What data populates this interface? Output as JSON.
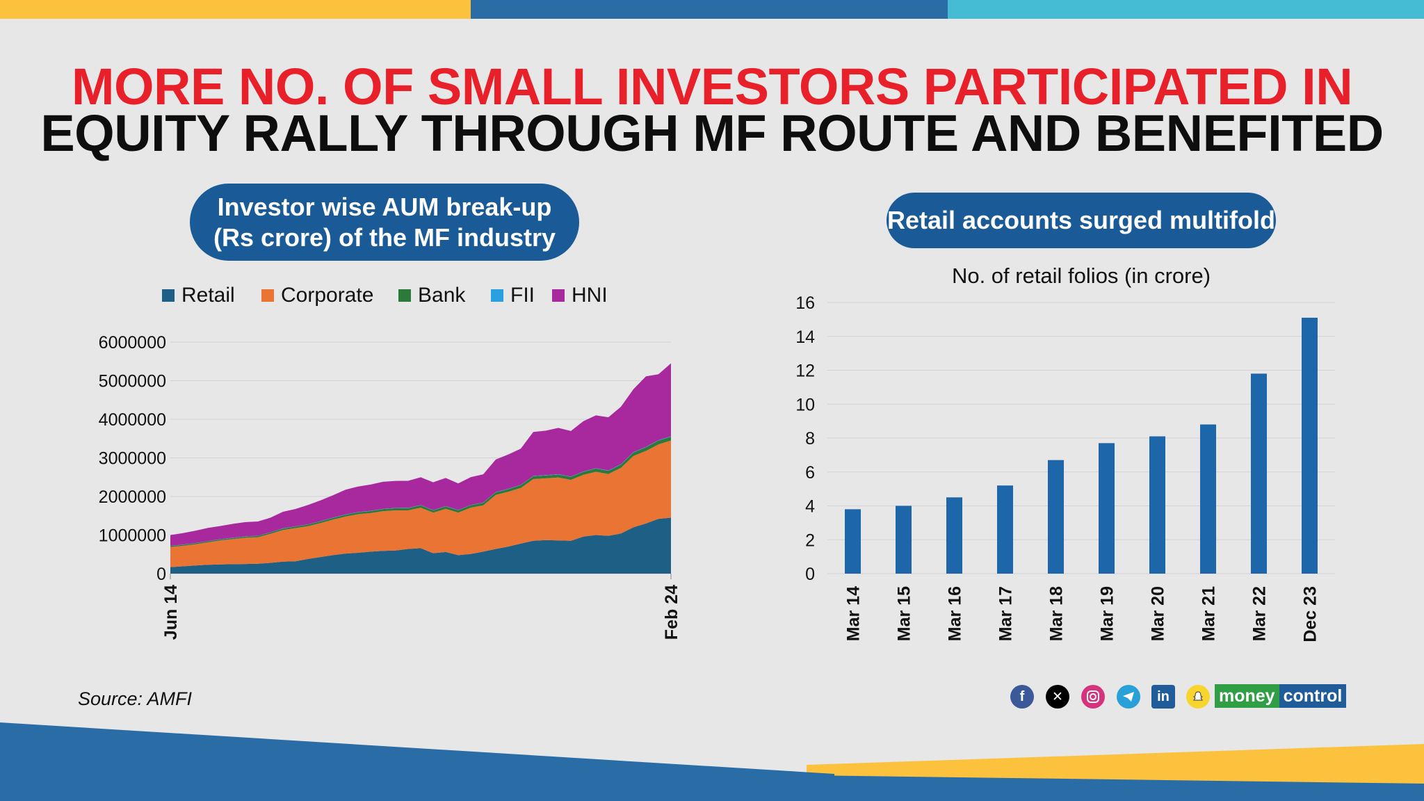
{
  "headline": {
    "line1": "MORE NO. OF SMALL INVESTORS PARTICIPATED IN",
    "line2": "EQUITY RALLY THROUGH MF ROUTE AND BENEFITED"
  },
  "left_panel": {
    "pill_line1": "Investor wise AUM break-up",
    "pill_line2": "(Rs crore) of the MF industry"
  },
  "right_panel": {
    "pill": "Retail accounts surged multifold"
  },
  "source": "Source: AMFI",
  "brand": {
    "part1": "money",
    "part2": "control"
  },
  "social_icons": [
    "facebook-icon",
    "x-icon",
    "instagram-icon",
    "telegram-icon",
    "linkedin-icon",
    "snapchat-icon"
  ],
  "colors": {
    "red": "#e8202a",
    "dark": "#0e0e0e",
    "pill_blue": "#1a5b97",
    "retail": "#1e5f86",
    "corporate": "#e97434",
    "bank": "#2a7a3a",
    "fii": "#2aa0e0",
    "hni": "#a8289e",
    "bar": "#1e66aa",
    "top_yellow": "#fcc23d",
    "top_blue": "#2a6ca6",
    "top_teal": "#45bcd4"
  },
  "chart_data": [
    {
      "type": "area",
      "stacked": true,
      "title": "Investor wise AUM break-up (Rs crore) of the MF industry",
      "legend": [
        "Retail",
        "Corporate",
        "Bank",
        "FII",
        "HNI"
      ],
      "xlabel": "",
      "ylabel": "",
      "x_tick_labels": [
        "Jun 14",
        "Feb 24"
      ],
      "y_ticks": [
        0,
        1000000,
        2000000,
        3000000,
        4000000,
        5000000,
        6000000
      ],
      "y_tick_labels": [
        "0",
        "1000000",
        "2000000",
        "3000000",
        "4000000",
        "5000000",
        "6000000"
      ],
      "ylim": [
        0,
        6000000
      ],
      "n_points": 41,
      "series": [
        {
          "name": "Retail",
          "values": [
            170000,
            190000,
            210000,
            230000,
            240000,
            245000,
            250000,
            255000,
            280000,
            310000,
            320000,
            380000,
            430000,
            480000,
            520000,
            540000,
            570000,
            590000,
            600000,
            640000,
            660000,
            530000,
            560000,
            480000,
            510000,
            570000,
            640000,
            700000,
            780000,
            850000,
            870000,
            860000,
            850000,
            960000,
            1000000,
            980000,
            1040000,
            1200000,
            1300000,
            1420000,
            1450000
          ]
        },
        {
          "name": "Corporate",
          "values": [
            520000,
            530000,
            550000,
            580000,
            620000,
            650000,
            680000,
            690000,
            750000,
            820000,
            860000,
            850000,
            880000,
            920000,
            960000,
            1000000,
            1000000,
            1030000,
            1040000,
            1000000,
            1050000,
            1050000,
            1120000,
            1100000,
            1200000,
            1200000,
            1400000,
            1420000,
            1440000,
            1600000,
            1600000,
            1630000,
            1580000,
            1600000,
            1640000,
            1600000,
            1700000,
            1850000,
            1880000,
            1930000,
            2000000
          ]
        },
        {
          "name": "Bank",
          "values": [
            25000,
            26000,
            27000,
            28000,
            29000,
            30000,
            31000,
            32000,
            35000,
            38000,
            40000,
            42000,
            44000,
            46000,
            48000,
            50000,
            52000,
            54000,
            56000,
            58000,
            60000,
            60000,
            62000,
            62000,
            64000,
            66000,
            68000,
            70000,
            72000,
            74000,
            76000,
            78000,
            78000,
            80000,
            82000,
            84000,
            86000,
            90000,
            94000,
            98000,
            100000
          ]
        },
        {
          "name": "FII",
          "values": [
            5000,
            5000,
            5000,
            5000,
            5000,
            5000,
            5000,
            5000,
            5000,
            6000,
            6000,
            6000,
            6000,
            6000,
            6000,
            6000,
            6000,
            7000,
            7000,
            7000,
            7000,
            7000,
            7000,
            7000,
            7000,
            8000,
            8000,
            8000,
            8000,
            8000,
            8000,
            8000,
            8000,
            9000,
            9000,
            9000,
            9000,
            9000,
            10000,
            10000,
            10000
          ]
        },
        {
          "name": "HNI",
          "values": [
            280000,
            300000,
            320000,
            340000,
            340000,
            360000,
            370000,
            370000,
            380000,
            430000,
            450000,
            500000,
            540000,
            580000,
            640000,
            660000,
            680000,
            700000,
            700000,
            700000,
            720000,
            720000,
            730000,
            690000,
            720000,
            730000,
            840000,
            890000,
            940000,
            1140000,
            1150000,
            1200000,
            1180000,
            1300000,
            1370000,
            1380000,
            1490000,
            1630000,
            1830000,
            1710000,
            1890000
          ]
        }
      ]
    },
    {
      "type": "bar",
      "title": "No. of retail folios (in crore)",
      "categories": [
        "Mar 14",
        "Mar 15",
        "Mar 16",
        "Mar 17",
        "Mar 18",
        "Mar 19",
        "Mar 20",
        "Mar 21",
        "Mar 22",
        "Dec 23"
      ],
      "values": [
        3.8,
        4.0,
        4.5,
        5.2,
        6.7,
        7.7,
        8.1,
        8.8,
        11.8,
        15.1
      ],
      "y_ticks": [
        0,
        2,
        4,
        6,
        8,
        10,
        12,
        14,
        16
      ],
      "ylim": [
        0,
        16
      ],
      "xlabel": "",
      "ylabel": ""
    }
  ]
}
